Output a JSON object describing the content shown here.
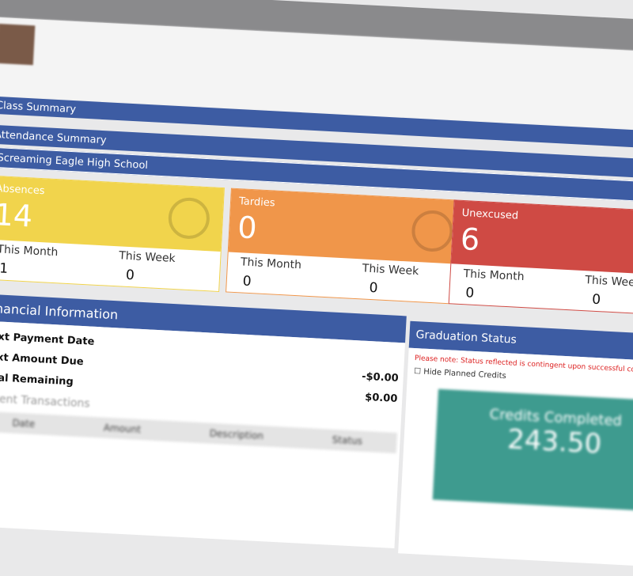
{
  "header": {
    "class_summary": "Class Summary",
    "attendance_summary": "Attendance Summary",
    "school": "Screaming Eagle High School"
  },
  "cards": [
    {
      "title": "Absences",
      "total": "14",
      "month_label": "This Month",
      "month": "1",
      "week_label": "This Week",
      "week": "0"
    },
    {
      "title": "Tardies",
      "total": "0",
      "month_label": "This Month",
      "month": "0",
      "week_label": "This Week",
      "week": "0"
    },
    {
      "title": "Unexcused",
      "total": "6",
      "month_label": "This Month",
      "month": "0",
      "week_label": "This Week",
      "week": "0"
    }
  ],
  "financial": {
    "title": "Financial Information",
    "rows": [
      [
        "Next Payment Date",
        ""
      ],
      [
        "Next Amount Due",
        "-$0.00"
      ],
      [
        "Total Remaining",
        "$0.00"
      ]
    ],
    "recent": "Recent Transactions",
    "columns": [
      "Date",
      "Amount",
      "Description",
      "Status"
    ]
  },
  "graduation": {
    "title": "Graduation Status",
    "note": "Please note: Status reflected is contingent upon successful compl",
    "hide": "Hide Planned Credits",
    "credits_label": "Credits Completed",
    "credits": "243.50"
  }
}
